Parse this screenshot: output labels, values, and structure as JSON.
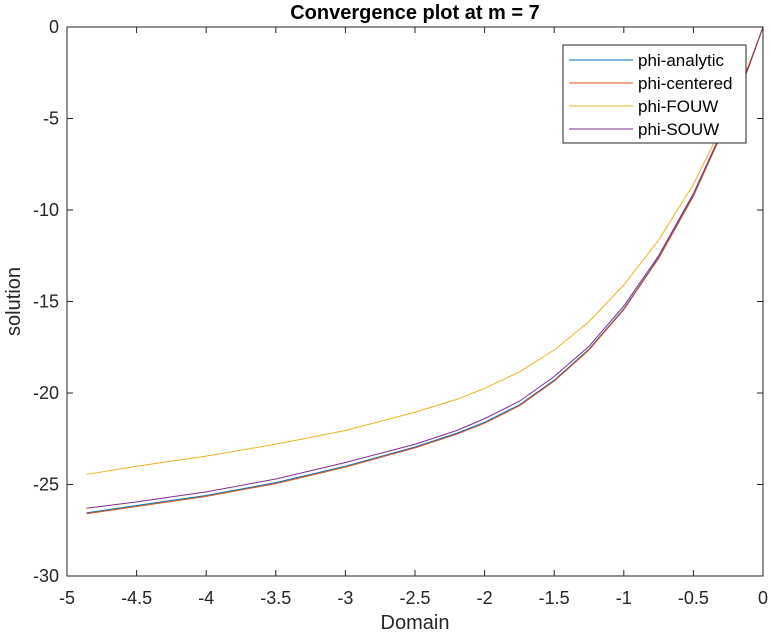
{
  "chart_data": {
    "type": "line",
    "title": "Convergence plot at m = 7",
    "xlabel": "Domain",
    "ylabel": "solution",
    "xlim": [
      -5,
      0
    ],
    "ylim": [
      -30,
      0
    ],
    "xticks": [
      -5,
      -4.5,
      -4,
      -3.5,
      -3,
      -2.5,
      -2,
      -1.5,
      -1,
      -0.5,
      0
    ],
    "xtick_labels": [
      "-5",
      "-4.5",
      "-4",
      "-3.5",
      "-3",
      "-2.5",
      "-2",
      "-1.5",
      "-1",
      "-0.5",
      "0"
    ],
    "yticks": [
      0,
      -5,
      -10,
      -15,
      -20,
      -25,
      -30
    ],
    "ytick_labels": [
      "0",
      "-5",
      "-10",
      "-15",
      "-20",
      "-25",
      "-30"
    ],
    "grid": false,
    "legend_position": "top-right",
    "x": [
      -4.86,
      -4.5,
      -4.0,
      -3.5,
      -3.0,
      -2.5,
      -2.2,
      -2.0,
      -1.75,
      -1.5,
      -1.25,
      -1.0,
      -0.75,
      -0.5,
      -0.25,
      -0.1,
      0
    ],
    "series": [
      {
        "name": "phi-analytic",
        "color": "#0072BD",
        "values": [
          -26.55,
          -26.15,
          -25.6,
          -24.9,
          -24.0,
          -22.95,
          -22.2,
          -21.6,
          -20.65,
          -19.3,
          -17.6,
          -15.4,
          -12.6,
          -9.2,
          -5.0,
          -2.1,
          0
        ]
      },
      {
        "name": "phi-centered",
        "color": "#D95319",
        "values": [
          -26.6,
          -26.2,
          -25.65,
          -24.95,
          -24.05,
          -23.0,
          -22.25,
          -21.65,
          -20.7,
          -19.35,
          -17.65,
          -15.45,
          -12.65,
          -9.25,
          -5.05,
          -2.15,
          0
        ]
      },
      {
        "name": "phi-FOUW",
        "color": "#EDB120",
        "values": [
          -24.45,
          -24.0,
          -23.45,
          -22.8,
          -22.05,
          -21.05,
          -20.35,
          -19.75,
          -18.85,
          -17.65,
          -16.1,
          -14.1,
          -11.65,
          -8.6,
          -4.75,
          -2.0,
          0
        ]
      },
      {
        "name": "phi-SOUW",
        "color": "#7E2F8E",
        "values": [
          -26.3,
          -25.95,
          -25.4,
          -24.7,
          -23.8,
          -22.8,
          -22.05,
          -21.4,
          -20.45,
          -19.1,
          -17.45,
          -15.25,
          -12.5,
          -9.1,
          -4.95,
          -2.1,
          0
        ]
      }
    ]
  }
}
